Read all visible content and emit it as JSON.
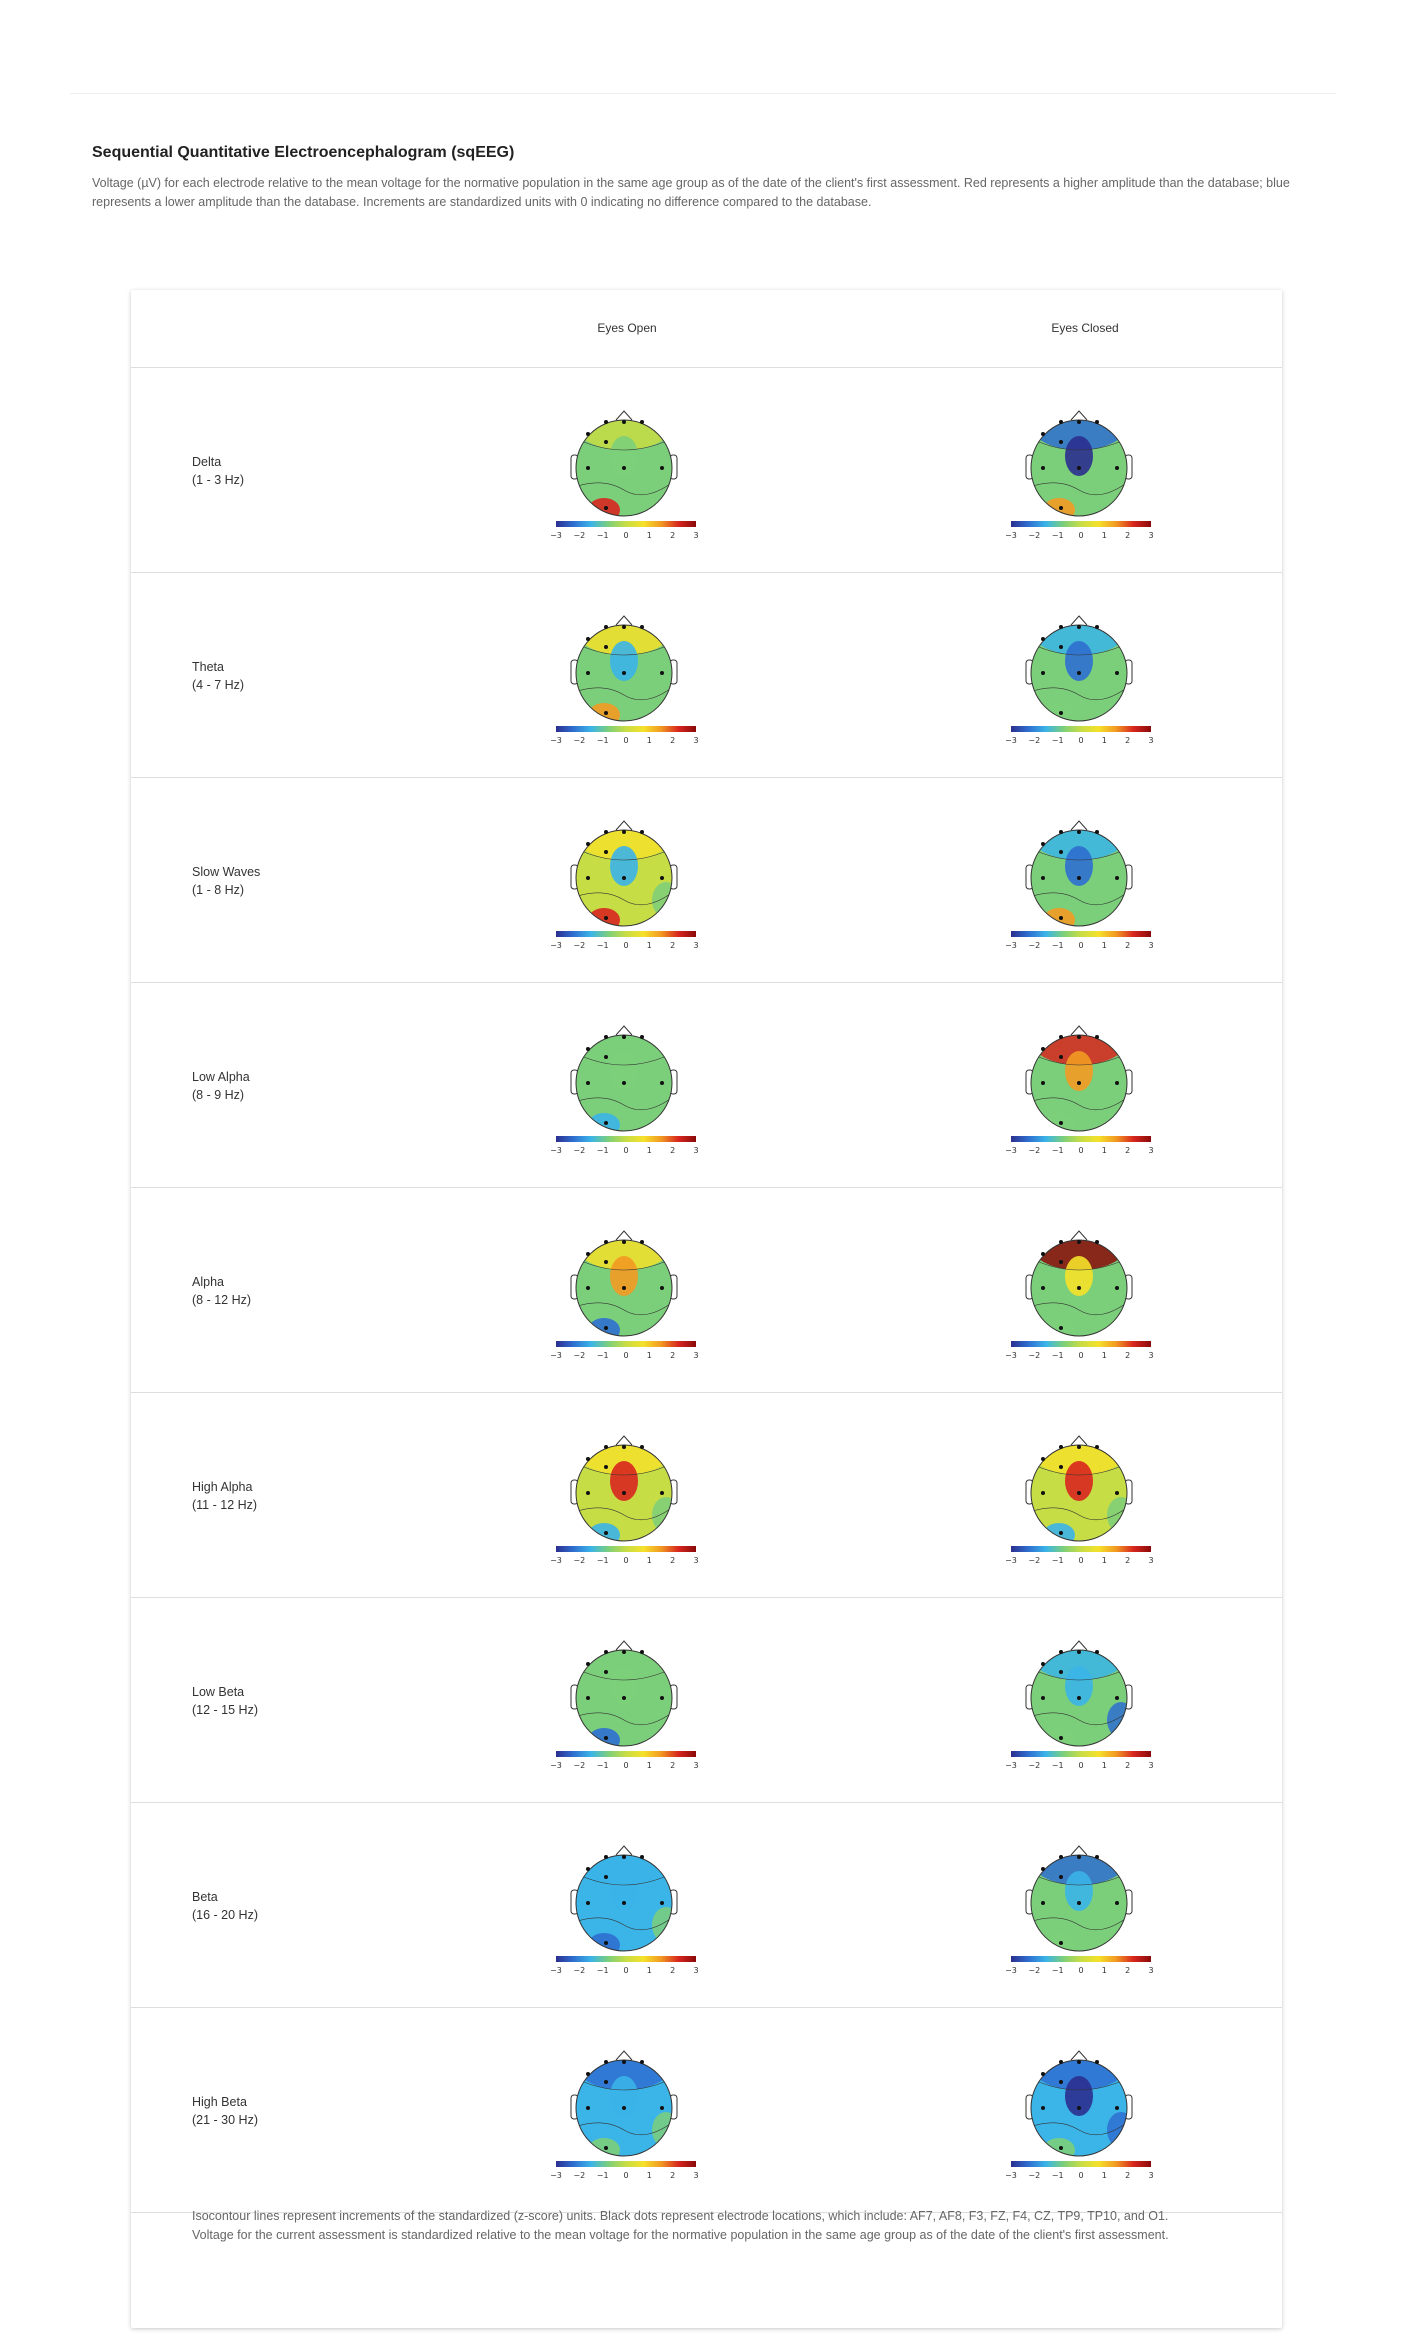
{
  "page": {
    "title": "Sequential Quantitative Electroencephalogram (sqEEG)",
    "description": "Voltage (µV) for each electrode relative to the mean voltage for the normative population in the same age group as of the date of the client's first assessment. Red represents a higher amplitude than the database; blue represents a lower amplitude than the database. Increments are standardized units with 0 indicating no difference compared to the database."
  },
  "table": {
    "columns": [
      "Eyes Open",
      "Eyes Closed"
    ],
    "colorbar_ticks": [
      "−3",
      "−2",
      "−1",
      "0",
      "1",
      "2",
      "3"
    ],
    "bands": [
      {
        "name": "Delta",
        "range": "(1 - 3 Hz)"
      },
      {
        "name": "Theta",
        "range": "(4 - 7 Hz)"
      },
      {
        "name": "Slow Waves",
        "range": "(1 - 8 Hz)"
      },
      {
        "name": "Low Alpha",
        "range": "(8 - 9 Hz)"
      },
      {
        "name": "Alpha",
        "range": "(8 - 12 Hz)"
      },
      {
        "name": "High Alpha",
        "range": "(11 - 12 Hz)"
      },
      {
        "name": "Low Beta",
        "range": "(12 - 15 Hz)"
      },
      {
        "name": "Beta",
        "range": "(16 - 20 Hz)"
      },
      {
        "name": "High Beta",
        "range": "(21 - 30 Hz)"
      }
    ],
    "footnote_1": "Isocontour lines represent increments of the standardized (z-score) units. Black dots represent electrode locations, which include: AF7, AF8, F3, FZ, F4, CZ, TP9, TP10, and O1.",
    "footnote_2": "Voltage for the current assessment is standardized relative to the mean voltage for the normative population in the same age group as of the date of the client's first assessment."
  },
  "colors": {
    "scale": [
      "#2b2f8f",
      "#2f6fd0",
      "#3bb4e8",
      "#7ccf7a",
      "#c7dd45",
      "#f5e12a",
      "#f29a22",
      "#d8261f",
      "#8a0a0a"
    ]
  }
}
